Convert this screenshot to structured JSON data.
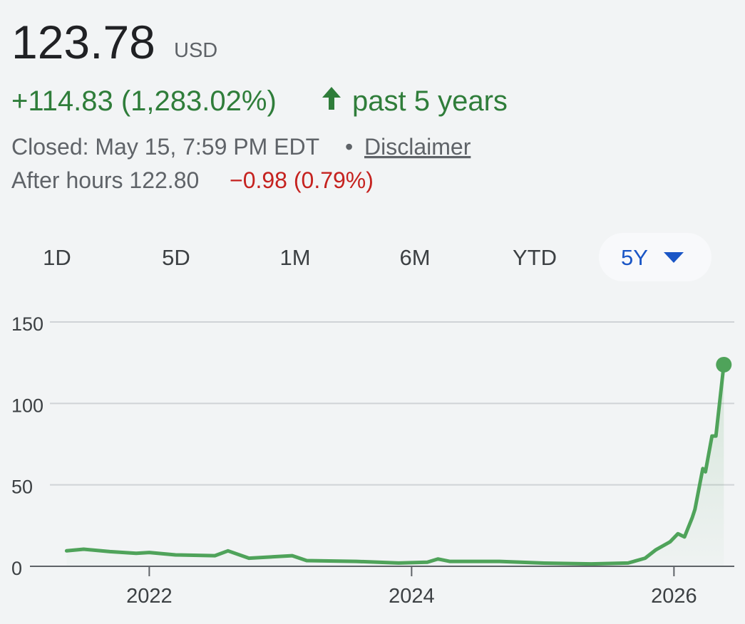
{
  "header": {
    "price": "123.78",
    "currency": "USD",
    "change": "+114.83 (1,283.02%)",
    "period": "past 5 years",
    "closed": "Closed: May 15, 7:59 PM EDT",
    "separator": "•",
    "disclaimer": "Disclaimer",
    "after_hours": "After hours 122.80",
    "after_change": "−0.98 (0.79%)"
  },
  "ranges": [
    "1D",
    "5D",
    "1M",
    "6M",
    "YTD",
    "5Y"
  ],
  "chart_data": {
    "type": "line",
    "color": "#4fa35a",
    "grid": true,
    "x": [
      2021.37,
      2021.5,
      2021.7,
      2021.9,
      2022.0,
      2022.2,
      2022.5,
      2022.6,
      2022.76,
      2023.09,
      2023.2,
      2023.58,
      2023.9,
      2024.12,
      2024.2,
      2024.29,
      2024.67,
      2024.99,
      2025.37,
      2025.65,
      2025.78,
      2025.86,
      2025.97,
      2026.03,
      2026.08,
      2026.14,
      2026.16,
      2026.22,
      2026.24,
      2026.29,
      2026.32,
      2026.38
    ],
    "series": [
      {
        "values": [
          9.5,
          10.5,
          9,
          8,
          8.5,
          7,
          6.5,
          9.5,
          5,
          6.5,
          3.5,
          3,
          2,
          2.5,
          4.5,
          3,
          3,
          2,
          1.5,
          2,
          5,
          10,
          15,
          20,
          18,
          30,
          35,
          60,
          58,
          80,
          80,
          123.78
        ]
      }
    ],
    "xlim": [
      2020.96,
      2026.46
    ],
    "xticks": [
      2022,
      2024,
      2026
    ],
    "ylim": [
      0,
      150
    ],
    "yticks": [
      0,
      50,
      100,
      150
    ]
  }
}
